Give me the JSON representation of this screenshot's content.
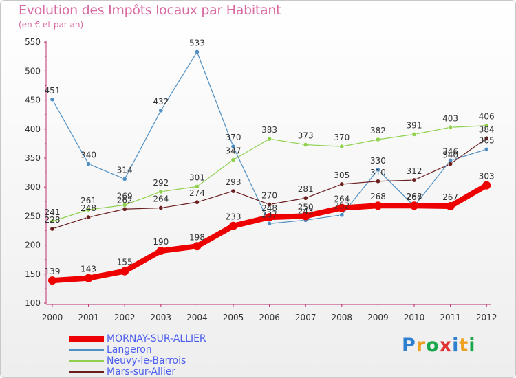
{
  "header": {
    "title": "Evolution des Impôts locaux par Habitant",
    "subtitle": "(en € et par an)"
  },
  "chart_data": {
    "type": "line",
    "title": "Evolution des Impôts locaux par Habitant",
    "subtitle": "(en € et par an)",
    "xlabel": "",
    "ylabel": "",
    "ylim": [
      100,
      550
    ],
    "yticks": [
      100,
      150,
      200,
      250,
      300,
      350,
      400,
      450,
      500,
      550
    ],
    "grid": false,
    "legend_position": "bottom-left",
    "x": [
      "2000",
      "2001",
      "2002",
      "2003",
      "2004",
      "2005",
      "2006",
      "2007",
      "2008",
      "2009",
      "2010",
      "2011",
      "2012"
    ],
    "series": [
      {
        "name": "Langeron",
        "color": "#4f8fc3",
        "width": "thin",
        "values": [
          451,
          340,
          314,
          432,
          533,
          370,
          237,
          243,
          252,
          330,
          267,
          346,
          365
        ],
        "labels": [
          "451",
          "340",
          "314",
          "432",
          "533",
          "370",
          "237",
          "243",
          "252",
          "330",
          "267",
          "346",
          "365"
        ]
      },
      {
        "name": "Neuvy-le-Barrois",
        "color": "#8fd14f",
        "width": "thin",
        "values": [
          241,
          261,
          269,
          292,
          301,
          347,
          383,
          373,
          370,
          382,
          391,
          403,
          406
        ],
        "labels": [
          "241",
          "261",
          "269",
          "292",
          "301",
          "347",
          "383",
          "373",
          "370",
          "382",
          "391",
          "403",
          "406"
        ]
      },
      {
        "name": "Mars-sur-Allier",
        "color": "#6b1f1f",
        "width": "thin",
        "values": [
          228,
          248,
          262,
          264,
          274,
          293,
          270,
          281,
          305,
          310,
          312,
          340,
          384
        ],
        "labels": [
          "228",
          "248",
          "262",
          "264",
          "274",
          "293",
          "270",
          "281",
          "305",
          "310",
          "312",
          "340",
          "384"
        ]
      },
      {
        "name": "MORNAY-SUR-ALLIER",
        "color": "#ee0000",
        "width": "thick",
        "values": [
          139,
          143,
          155,
          190,
          198,
          233,
          248,
          250,
          264,
          268,
          268,
          267,
          303
        ],
        "labels": [
          "139",
          "143",
          "155",
          "190",
          "198",
          "233",
          "248",
          "250",
          "264",
          "268",
          "268",
          "267",
          "303"
        ]
      }
    ]
  },
  "legend": {
    "items": [
      {
        "name": "MORNAY-SUR-ALLIER",
        "color": "#ee0000"
      },
      {
        "name": "Langeron",
        "color": "#4f8fc3"
      },
      {
        "name": "Neuvy-le-Barrois",
        "color": "#8fd14f"
      },
      {
        "name": "Mars-sur-Allier",
        "color": "#6b1f1f"
      }
    ]
  },
  "logo": {
    "letters": [
      {
        "char": "P",
        "color": "#2f7fd0"
      },
      {
        "char": "r",
        "color": "#f0a020"
      },
      {
        "char": "o",
        "color": "#1aa84a"
      },
      {
        "char": "x",
        "color": "#e03030"
      },
      {
        "char": "i",
        "color": "#2f7fd0"
      },
      {
        "char": "t",
        "color": "#f0a020"
      },
      {
        "char": "i",
        "color": "#1aa84a"
      }
    ]
  }
}
